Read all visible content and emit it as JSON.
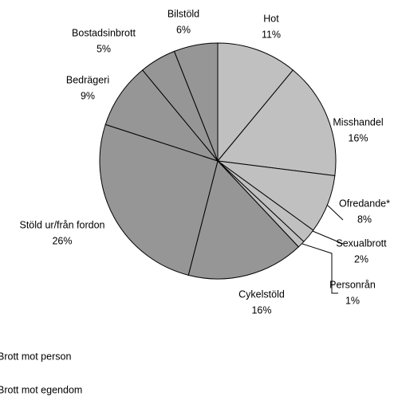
{
  "chart_data": {
    "type": "pie",
    "categories": [
      "Hot",
      "Misshandel",
      "Ofredande*",
      "Sexualbrott",
      "Personrån",
      "Cykelstöld",
      "Stöld ur/från fordon",
      "Bedrägeri",
      "Bostadsinbrott",
      "Bilstöld"
    ],
    "values": [
      11,
      16,
      8,
      2,
      1,
      16,
      26,
      9,
      5,
      6
    ],
    "value_labels": [
      "11%",
      "16%",
      "8%",
      "2%",
      "1%",
      "16%",
      "26%",
      "9%",
      "5%",
      "6%"
    ],
    "colors": [
      "#c0c0c0",
      "#c0c0c0",
      "#c0c0c0",
      "#c0c0c0",
      "#c0c0c0",
      "#969696",
      "#969696",
      "#969696",
      "#969696",
      "#969696"
    ],
    "legend": [
      {
        "name": "Brott mot person",
        "color": "#c0c0c0"
      },
      {
        "name": "Brott mot egendom",
        "color": "#969696"
      }
    ]
  }
}
